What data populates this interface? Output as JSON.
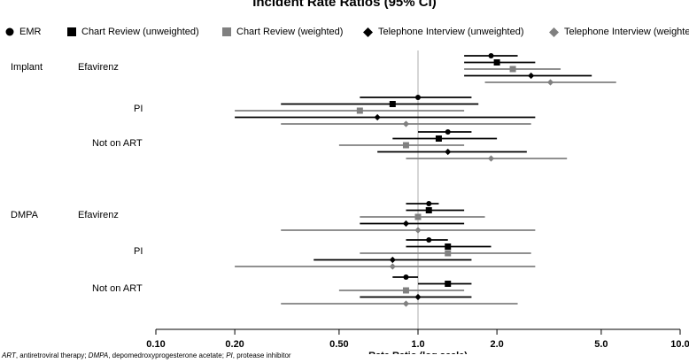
{
  "title": "Incident Rate Ratios (95% CI)",
  "legend": [
    {
      "label": "EMR",
      "color": "#000000",
      "shape": "circle"
    },
    {
      "label": "Chart Review (unweighted)",
      "color": "#000000",
      "shape": "square"
    },
    {
      "label": "Chart Review (weighted)",
      "color": "#808080",
      "shape": "square"
    },
    {
      "label": "Telephone Interview (unweighted)",
      "color": "#000000",
      "shape": "diamond"
    },
    {
      "label": "Telephone Interview (weighted)",
      "color": "#808080",
      "shape": "diamond"
    }
  ],
  "footnote": {
    "art_abbr": "ART",
    "art_text": ", antiretroviral therapy; ",
    "dmpa_abbr": "DMPA",
    "dmpa_text": ", depomedroxyprogesterone acetate; ",
    "pi_abbr": "PI",
    "pi_text": ", protease inhibitor"
  },
  "chart_data": {
    "type": "forest",
    "title": "Incident Rate Ratios (95% CI)",
    "xlabel": "Rate Ratio (log scale)",
    "xscale": "log",
    "xlim": [
      0.1,
      10.0
    ],
    "ticks": [
      0.1,
      0.2,
      0.5,
      1.0,
      2.0,
      5.0,
      10.0
    ],
    "tick_labels": [
      "0.10",
      "0.20",
      "0.50",
      "1.0",
      "2.0",
      "5.0",
      "10.0"
    ],
    "reference_line": 1.0,
    "series_order": [
      "EMR",
      "Chart Review (unweighted)",
      "Chart Review (weighted)",
      "Telephone Interview (unweighted)",
      "Telephone Interview (weighted)"
    ],
    "groups": [
      {
        "label": "Implant",
        "rows": [
          {
            "label": "Efavirenz",
            "estimates": [
              {
                "series": "EMR",
                "est": 1.9,
                "lo": 1.5,
                "hi": 2.4
              },
              {
                "series": "Chart Review (unweighted)",
                "est": 2.0,
                "lo": 1.5,
                "hi": 2.8
              },
              {
                "series": "Chart Review (weighted)",
                "est": 2.3,
                "lo": 1.5,
                "hi": 3.5
              },
              {
                "series": "Telephone Interview (unweighted)",
                "est": 2.7,
                "lo": 1.5,
                "hi": 4.6
              },
              {
                "series": "Telephone Interview (weighted)",
                "est": 3.2,
                "lo": 1.8,
                "hi": 5.7
              }
            ]
          },
          {
            "label": "PI",
            "estimates": [
              {
                "series": "EMR",
                "est": 1.0,
                "lo": 0.6,
                "hi": 1.6
              },
              {
                "series": "Chart Review (unweighted)",
                "est": 0.8,
                "lo": 0.3,
                "hi": 1.7
              },
              {
                "series": "Chart Review (weighted)",
                "est": 0.6,
                "lo": 0.2,
                "hi": 1.5
              },
              {
                "series": "Telephone Interview (unweighted)",
                "est": 0.7,
                "lo": 0.2,
                "hi": 2.8
              },
              {
                "series": "Telephone Interview (weighted)",
                "est": 0.9,
                "lo": 0.3,
                "hi": 2.7
              }
            ]
          },
          {
            "label": "Not on ART",
            "estimates": [
              {
                "series": "EMR",
                "est": 1.3,
                "lo": 1.0,
                "hi": 1.6
              },
              {
                "series": "Chart Review (unweighted)",
                "est": 1.2,
                "lo": 0.8,
                "hi": 2.0
              },
              {
                "series": "Chart Review (weighted)",
                "est": 0.9,
                "lo": 0.5,
                "hi": 1.5
              },
              {
                "series": "Telephone Interview (unweighted)",
                "est": 1.3,
                "lo": 0.7,
                "hi": 2.6
              },
              {
                "series": "Telephone Interview (weighted)",
                "est": 1.9,
                "lo": 0.9,
                "hi": 3.7
              }
            ]
          }
        ]
      },
      {
        "label": "DMPA",
        "rows": [
          {
            "label": "Efavirenz",
            "estimates": [
              {
                "series": "EMR",
                "est": 1.1,
                "lo": 0.9,
                "hi": 1.2
              },
              {
                "series": "Chart Review (unweighted)",
                "est": 1.1,
                "lo": 0.9,
                "hi": 1.5
              },
              {
                "series": "Chart Review (weighted)",
                "est": 1.0,
                "lo": 0.6,
                "hi": 1.8
              },
              {
                "series": "Telephone Interview (unweighted)",
                "est": 0.9,
                "lo": 0.6,
                "hi": 1.5
              },
              {
                "series": "Telephone Interview (weighted)",
                "est": 1.0,
                "lo": 0.3,
                "hi": 2.8
              }
            ]
          },
          {
            "label": "PI",
            "estimates": [
              {
                "series": "EMR",
                "est": 1.1,
                "lo": 0.9,
                "hi": 1.3
              },
              {
                "series": "Chart Review (unweighted)",
                "est": 1.3,
                "lo": 0.9,
                "hi": 1.9
              },
              {
                "series": "Chart Review (weighted)",
                "est": 1.3,
                "lo": 0.6,
                "hi": 2.7
              },
              {
                "series": "Telephone Interview (unweighted)",
                "est": 0.8,
                "lo": 0.4,
                "hi": 1.6
              },
              {
                "series": "Telephone Interview (weighted)",
                "est": 0.8,
                "lo": 0.2,
                "hi": 2.8
              }
            ]
          },
          {
            "label": "Not on ART",
            "estimates": [
              {
                "series": "EMR",
                "est": 0.9,
                "lo": 0.8,
                "hi": 1.0
              },
              {
                "series": "Chart Review (unweighted)",
                "est": 1.3,
                "lo": 1.0,
                "hi": 1.6
              },
              {
                "series": "Chart Review (weighted)",
                "est": 0.9,
                "lo": 0.5,
                "hi": 1.5
              },
              {
                "series": "Telephone Interview (unweighted)",
                "est": 1.0,
                "lo": 0.6,
                "hi": 1.6
              },
              {
                "series": "Telephone Interview (weighted)",
                "est": 0.9,
                "lo": 0.3,
                "hi": 2.4
              }
            ]
          }
        ]
      }
    ]
  }
}
